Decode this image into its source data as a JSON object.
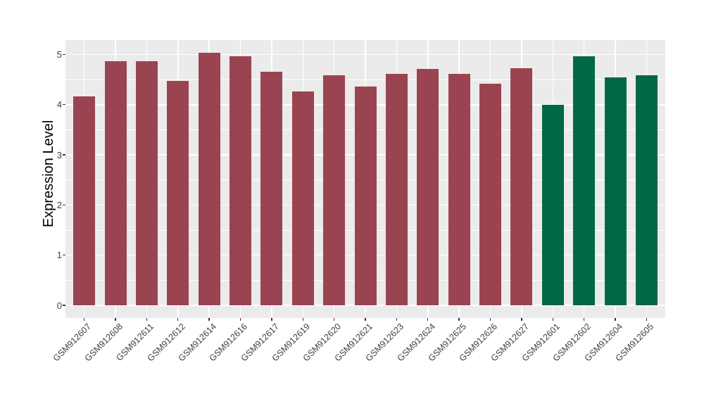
{
  "chart_data": {
    "type": "bar",
    "title": "",
    "xlabel": "",
    "ylabel": "Expression Level",
    "ylim": [
      -0.25,
      5.29
    ],
    "yticks": [
      0,
      1,
      2,
      3,
      4,
      5
    ],
    "yminor": [
      0.5,
      1.5,
      2.5,
      3.5,
      4.5
    ],
    "grid": "white major and minor gridlines on gray panel",
    "legend_position": "none",
    "panel_background": "#EBEBEB",
    "grid_color": "#FFFFFF",
    "axis_text_color": "#404040",
    "axis_title_color": "#000000",
    "categories": [
      "GSM912607",
      "GSM912608",
      "GSM912611",
      "GSM912612",
      "GSM912614",
      "GSM912616",
      "GSM912617",
      "GSM912619",
      "GSM912620",
      "GSM912621",
      "GSM912623",
      "GSM912624",
      "GSM912625",
      "GSM912626",
      "GSM912627",
      "GSM912601",
      "GSM912602",
      "GSM912604",
      "GSM912605"
    ],
    "values": [
      4.16,
      4.87,
      4.87,
      4.48,
      5.04,
      4.96,
      4.66,
      4.26,
      4.58,
      4.36,
      4.62,
      4.71,
      4.61,
      4.42,
      4.73,
      4.0,
      4.96,
      4.55,
      4.59
    ],
    "groups": [
      "group-a",
      "group-a",
      "group-a",
      "group-a",
      "group-a",
      "group-a",
      "group-a",
      "group-a",
      "group-a",
      "group-a",
      "group-a",
      "group-a",
      "group-a",
      "group-a",
      "group-a",
      "group-b",
      "group-b",
      "group-b",
      "group-b"
    ],
    "group_colors": {
      "group-a": "#9B4451",
      "group-b": "#006847"
    }
  }
}
